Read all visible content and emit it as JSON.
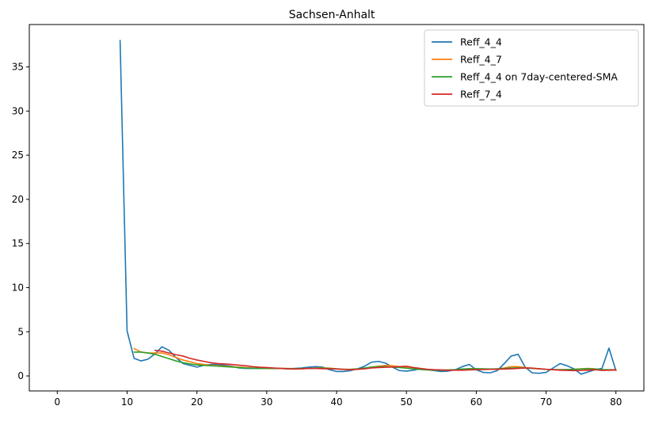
{
  "chart_data": {
    "type": "line",
    "title": "Sachsen-Anhalt",
    "xlabel": "",
    "ylabel": "",
    "xlim": [
      -4,
      84
    ],
    "ylim": [
      -1.7,
      39.8
    ],
    "xticks": [
      0,
      10,
      20,
      30,
      40,
      50,
      60,
      70,
      80
    ],
    "yticks": [
      0,
      5,
      10,
      15,
      20,
      25,
      30,
      35
    ],
    "grid": false,
    "legend_position": "top-right",
    "series": [
      {
        "name": "Reff_4_4",
        "color": "#1f77b4",
        "x": [
          9,
          10,
          11,
          12,
          13,
          14,
          15,
          16,
          17,
          18,
          19,
          20,
          21,
          22,
          23,
          24,
          25,
          26,
          27,
          28,
          29,
          30,
          31,
          32,
          33,
          34,
          35,
          36,
          37,
          38,
          39,
          40,
          41,
          42,
          43,
          44,
          45,
          46,
          47,
          48,
          49,
          50,
          51,
          52,
          53,
          54,
          55,
          56,
          57,
          58,
          59,
          60,
          61,
          62,
          63,
          64,
          65,
          66,
          67,
          68,
          69,
          70,
          71,
          72,
          73,
          74,
          75,
          76,
          77,
          78,
          79,
          80
        ],
        "y": [
          38.0,
          5.1,
          2.0,
          1.7,
          1.9,
          2.5,
          3.3,
          2.9,
          2.1,
          1.4,
          1.2,
          1.0,
          1.2,
          1.3,
          1.3,
          1.2,
          1.1,
          0.9,
          0.85,
          0.85,
          0.85,
          0.9,
          0.85,
          0.85,
          0.8,
          0.85,
          0.9,
          1.0,
          1.05,
          1.0,
          0.7,
          0.5,
          0.5,
          0.6,
          0.8,
          1.1,
          1.55,
          1.65,
          1.45,
          1.0,
          0.6,
          0.55,
          0.65,
          0.8,
          0.7,
          0.6,
          0.5,
          0.55,
          0.7,
          1.05,
          1.3,
          0.7,
          0.4,
          0.35,
          0.6,
          1.4,
          2.25,
          2.45,
          1.0,
          0.35,
          0.3,
          0.4,
          0.9,
          1.4,
          1.15,
          0.8,
          0.2,
          0.45,
          0.7,
          0.85,
          3.15,
          0.6
        ]
      },
      {
        "name": "Reff_4_7",
        "color": "#ff7f0e",
        "x": [
          11,
          12,
          13,
          14,
          15,
          16,
          17,
          18,
          19,
          20,
          21,
          22,
          23,
          24,
          25,
          26,
          27,
          28,
          29,
          30,
          31,
          32,
          33,
          34,
          35,
          36,
          37,
          38,
          39,
          40,
          41,
          42,
          43,
          44,
          45,
          46,
          47,
          48,
          49,
          50,
          51,
          52,
          53,
          54,
          55,
          56,
          57,
          58,
          59,
          60,
          61,
          62,
          63,
          64,
          65,
          66,
          67,
          68,
          69,
          70,
          71,
          72,
          73,
          74,
          75,
          76,
          77,
          78,
          79,
          80
        ],
        "y": [
          3.1,
          2.7,
          2.6,
          2.6,
          2.6,
          2.4,
          2.1,
          1.8,
          1.6,
          1.4,
          1.3,
          1.2,
          1.15,
          1.1,
          1.05,
          1.0,
          0.95,
          0.9,
          0.88,
          0.85,
          0.85,
          0.85,
          0.85,
          0.83,
          0.82,
          0.85,
          0.9,
          0.92,
          0.88,
          0.8,
          0.72,
          0.7,
          0.75,
          0.85,
          1.0,
          1.1,
          1.2,
          1.15,
          1.05,
          0.95,
          0.85,
          0.78,
          0.72,
          0.68,
          0.65,
          0.65,
          0.68,
          0.75,
          0.8,
          0.8,
          0.78,
          0.75,
          0.8,
          0.9,
          1.05,
          1.05,
          0.95,
          0.88,
          0.8,
          0.75,
          0.72,
          0.7,
          0.72,
          0.75,
          0.8,
          0.85,
          0.8,
          0.7,
          0.65,
          0.65
        ]
      },
      {
        "name": "Reff_4_4 on 7day-centered-SMA",
        "color": "#2ca02c",
        "x": [
          11,
          12,
          13,
          14,
          15,
          16,
          17,
          18,
          19,
          20,
          21,
          22,
          23,
          24,
          25,
          26,
          27,
          28,
          29,
          30,
          31,
          32,
          33,
          34,
          35,
          36,
          37,
          38,
          39,
          40,
          41,
          42,
          43,
          44,
          45,
          46,
          47,
          48,
          49,
          50,
          51,
          52,
          53,
          54,
          55,
          56,
          57,
          58,
          59,
          60,
          61,
          62,
          63,
          64,
          65,
          66,
          67,
          68,
          69,
          70,
          71,
          72,
          73,
          74,
          75,
          76,
          77,
          78,
          79,
          80
        ],
        "y": [
          2.7,
          2.7,
          2.6,
          2.45,
          2.2,
          1.95,
          1.7,
          1.5,
          1.35,
          1.25,
          1.2,
          1.15,
          1.1,
          1.05,
          1.0,
          0.95,
          0.9,
          0.88,
          0.85,
          0.85,
          0.85,
          0.85,
          0.83,
          0.82,
          0.83,
          0.85,
          0.88,
          0.88,
          0.85,
          0.8,
          0.75,
          0.75,
          0.8,
          0.9,
          1.0,
          1.05,
          1.05,
          1.0,
          0.95,
          0.88,
          0.8,
          0.72,
          0.68,
          0.65,
          0.65,
          0.68,
          0.72,
          0.78,
          0.82,
          0.82,
          0.8,
          0.78,
          0.8,
          0.85,
          0.9,
          0.92,
          0.9,
          0.85,
          0.8,
          0.75,
          0.72,
          0.7,
          0.72,
          0.75,
          0.78,
          0.8,
          0.78,
          0.72,
          0.7,
          0.7
        ]
      },
      {
        "name": "Reff_7_4",
        "color": "#d62728",
        "x": [
          14,
          15,
          16,
          17,
          18,
          19,
          20,
          21,
          22,
          23,
          24,
          25,
          26,
          27,
          28,
          29,
          30,
          31,
          32,
          33,
          34,
          35,
          36,
          37,
          38,
          39,
          40,
          41,
          42,
          43,
          44,
          45,
          46,
          47,
          48,
          49,
          50,
          51,
          52,
          53,
          54,
          55,
          56,
          57,
          58,
          59,
          60,
          61,
          62,
          63,
          64,
          65,
          66,
          67,
          68,
          69,
          70,
          71,
          72,
          73,
          74,
          75,
          76,
          77,
          78,
          79,
          80
        ],
        "y": [
          2.9,
          2.8,
          2.6,
          2.4,
          2.25,
          2.0,
          1.8,
          1.65,
          1.5,
          1.4,
          1.35,
          1.3,
          1.22,
          1.15,
          1.05,
          0.98,
          0.95,
          0.9,
          0.85,
          0.8,
          0.78,
          0.8,
          0.85,
          0.85,
          0.82,
          0.8,
          0.78,
          0.75,
          0.72,
          0.75,
          0.8,
          0.9,
          0.95,
          0.98,
          1.0,
          1.05,
          1.1,
          0.95,
          0.85,
          0.75,
          0.7,
          0.68,
          0.65,
          0.65,
          0.65,
          0.68,
          0.7,
          0.72,
          0.75,
          0.75,
          0.78,
          0.8,
          0.85,
          0.9,
          0.88,
          0.82,
          0.75,
          0.7,
          0.65,
          0.62,
          0.6,
          0.62,
          0.65,
          0.7,
          0.62,
          0.65,
          0.7
        ]
      }
    ]
  }
}
